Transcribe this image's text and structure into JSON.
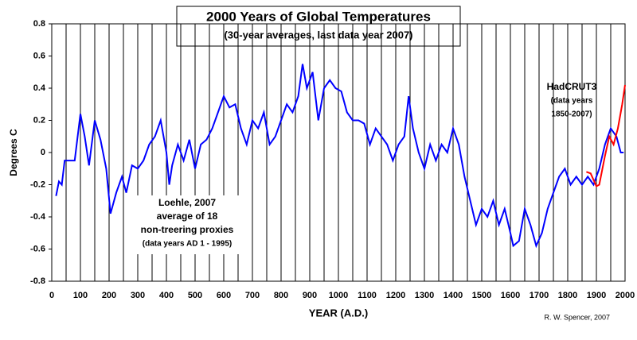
{
  "chart_data": {
    "type": "line",
    "title": "2000 Years of Global Temperatures",
    "subtitle": "(30-year averages, last data year 2007)",
    "xlabel": "YEAR (A.D.)",
    "ylabel": "Degrees C",
    "credit": "R. W. Spencer, 2007",
    "annotations": [
      {
        "lines": [
          "HadCRUT3",
          "(data years",
          "1850-2007)"
        ]
      },
      {
        "lines": [
          "Loehle, 2007",
          "average of 18",
          "non-treering proxies",
          "(data years AD 1 - 1995)"
        ]
      }
    ],
    "xlim": [
      0,
      2000
    ],
    "xticks": [
      0,
      100,
      200,
      300,
      400,
      500,
      600,
      700,
      800,
      900,
      1000,
      1100,
      1200,
      1300,
      1400,
      1500,
      1600,
      1700,
      1800,
      1900,
      2000
    ],
    "xminorticks": [
      50,
      150,
      250,
      350,
      450,
      550,
      650,
      750,
      850,
      950,
      1050,
      1150,
      1250,
      1350,
      1450,
      1550,
      1650,
      1750,
      1850,
      1950
    ],
    "ylim": [
      -0.8,
      0.8
    ],
    "yticks": [
      0.8,
      0.6,
      0.4,
      0.2,
      0,
      -0.2,
      -0.4,
      -0.6,
      -0.8
    ],
    "grid": "x",
    "series": [
      {
        "name": "Loehle, 2007",
        "color": "#0000ff",
        "x": [
          15,
          25,
          35,
          45,
          60,
          80,
          100,
          115,
          130,
          150,
          170,
          190,
          205,
          225,
          245,
          260,
          280,
          300,
          320,
          340,
          360,
          380,
          400,
          410,
          420,
          440,
          460,
          480,
          500,
          520,
          540,
          560,
          580,
          600,
          620,
          640,
          660,
          680,
          700,
          720,
          740,
          760,
          780,
          800,
          820,
          840,
          860,
          875,
          890,
          910,
          930,
          950,
          970,
          990,
          1010,
          1030,
          1050,
          1070,
          1090,
          1110,
          1130,
          1150,
          1170,
          1190,
          1210,
          1230,
          1245,
          1260,
          1280,
          1300,
          1320,
          1340,
          1360,
          1380,
          1400,
          1420,
          1440,
          1460,
          1480,
          1500,
          1520,
          1540,
          1560,
          1580,
          1600,
          1610,
          1630,
          1650,
          1670,
          1690,
          1710,
          1730,
          1750,
          1770,
          1790,
          1810,
          1830,
          1850,
          1870,
          1890,
          1910,
          1930,
          1950,
          1970,
          1985,
          1995
        ],
        "values": [
          -0.27,
          -0.18,
          -0.2,
          -0.05,
          -0.05,
          -0.05,
          0.24,
          0.1,
          -0.08,
          0.2,
          0.08,
          -0.1,
          -0.38,
          -0.25,
          -0.15,
          -0.25,
          -0.08,
          -0.1,
          -0.05,
          0.05,
          0.1,
          0.2,
          0.0,
          -0.2,
          -0.08,
          0.05,
          -0.05,
          0.08,
          -0.1,
          0.05,
          0.08,
          0.15,
          0.25,
          0.35,
          0.28,
          0.3,
          0.15,
          0.05,
          0.2,
          0.15,
          0.25,
          0.05,
          0.1,
          0.2,
          0.3,
          0.25,
          0.35,
          0.55,
          0.4,
          0.5,
          0.2,
          0.4,
          0.45,
          0.4,
          0.38,
          0.25,
          0.2,
          0.2,
          0.18,
          0.05,
          0.15,
          0.1,
          0.05,
          -0.05,
          0.05,
          0.1,
          0.35,
          0.15,
          0.0,
          -0.1,
          0.05,
          -0.05,
          0.05,
          0.0,
          0.15,
          0.05,
          -0.15,
          -0.3,
          -0.45,
          -0.35,
          -0.4,
          -0.3,
          -0.45,
          -0.35,
          -0.5,
          -0.58,
          -0.55,
          -0.35,
          -0.45,
          -0.58,
          -0.5,
          -0.35,
          -0.25,
          -0.15,
          -0.1,
          -0.2,
          -0.15,
          -0.2,
          -0.15,
          -0.2,
          -0.1,
          0.05,
          0.15,
          0.1,
          0.0,
          0.0
        ]
      },
      {
        "name": "HadCRUT3",
        "color": "#ff0000",
        "x": [
          1865,
          1880,
          1900,
          1910,
          1930,
          1945,
          1960,
          1975,
          1990,
          2000
        ],
        "values": [
          -0.12,
          -0.13,
          -0.21,
          -0.2,
          -0.02,
          0.1,
          0.05,
          0.15,
          0.3,
          0.42
        ]
      }
    ]
  }
}
